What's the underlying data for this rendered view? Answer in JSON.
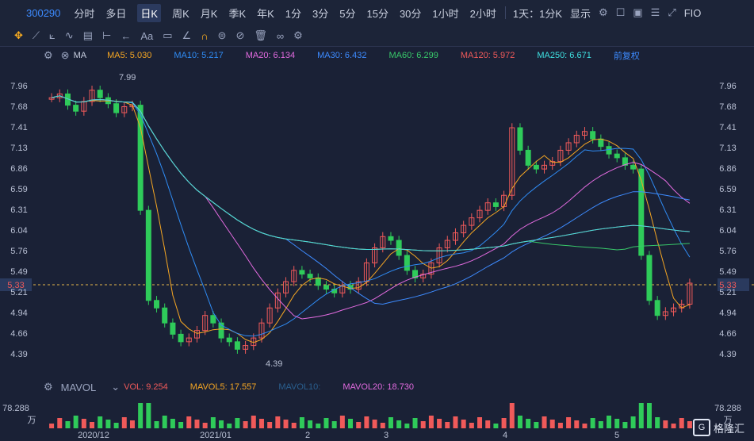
{
  "header": {
    "stock_code": "300290",
    "timeframes": [
      "分时",
      "多日",
      "日K",
      "周K",
      "月K",
      "季K",
      "年K",
      "1分",
      "3分",
      "5分",
      "15分",
      "30分",
      "1小时",
      "2小时"
    ],
    "active_timeframe": "日K",
    "range": "1天：1分K",
    "display": "显示",
    "fio": "FIO"
  },
  "ma": {
    "label": "MA",
    "items": [
      {
        "text": "MA5: 5.030",
        "color": "#f5a623"
      },
      {
        "text": "MA10: 5.217",
        "color": "#2f8cf5"
      },
      {
        "text": "MA20: 6.134",
        "color": "#e36be0"
      },
      {
        "text": "MA30: 6.432",
        "color": "#3d8bff"
      },
      {
        "text": "MA60: 6.299",
        "color": "#38c96a"
      },
      {
        "text": "MA120: 5.972",
        "color": "#f05a5a"
      },
      {
        "text": "MA250: 6.671",
        "color": "#3fe0e0"
      }
    ],
    "adjust": "前复权"
  },
  "price_axis": {
    "ticks": [
      "7.96",
      "7.68",
      "7.41",
      "7.13",
      "6.86",
      "6.59",
      "6.31",
      "6.04",
      "5.76",
      "5.49",
      "5.21",
      "4.94",
      "4.66",
      "4.39"
    ],
    "current": "5.33",
    "high_mark": "7.99",
    "low_mark": "4.39"
  },
  "date_axis": [
    "2020/12",
    "2021/01",
    "2",
    "3",
    "4",
    "5"
  ],
  "vol": {
    "label": "MAVOL",
    "items": [
      {
        "text": "VOL: 9.254",
        "color": "#f05a5a"
      },
      {
        "text": "MAVOL5: 17.557",
        "color": "#f5a623"
      },
      {
        "text": "MAVOL10:",
        "color": "#2a5f8f"
      },
      {
        "text": "MAVOL20: 18.730",
        "color": "#e36be0"
      }
    ],
    "axis_value": "78.288",
    "axis_unit": "万"
  },
  "watermark": "格隆汇",
  "chart_data": {
    "type": "candlestick",
    "ylim": [
      4.25,
      8.1
    ],
    "closes": [
      7.8,
      7.85,
      7.7,
      7.62,
      7.75,
      7.9,
      7.8,
      7.72,
      7.6,
      7.68,
      7.7,
      6.3,
      5.1,
      5.0,
      4.8,
      4.65,
      4.55,
      4.6,
      4.7,
      4.9,
      4.8,
      4.6,
      4.55,
      4.45,
      4.5,
      4.6,
      4.8,
      5.0,
      5.2,
      5.35,
      5.5,
      5.45,
      5.4,
      5.3,
      5.25,
      5.2,
      5.3,
      5.25,
      5.35,
      5.6,
      5.8,
      5.95,
      5.9,
      5.7,
      5.5,
      5.4,
      5.45,
      5.6,
      5.8,
      5.9,
      6.0,
      6.1,
      6.2,
      6.3,
      6.4,
      6.35,
      6.5,
      7.4,
      7.1,
      6.9,
      6.85,
      6.9,
      6.95,
      7.1,
      7.2,
      7.3,
      7.35,
      7.25,
      7.15,
      7.05,
      7.0,
      6.9,
      6.85,
      5.7,
      5.1,
      4.9,
      4.95,
      5.0,
      5.05,
      5.33
    ]
  }
}
